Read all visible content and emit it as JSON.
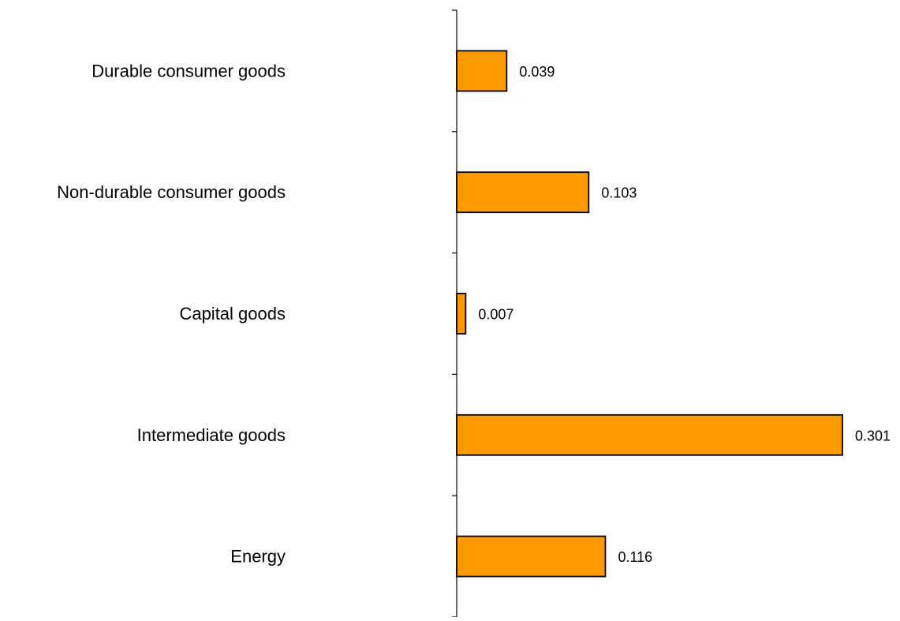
{
  "chart_data": {
    "type": "bar",
    "orientation": "horizontal",
    "categories": [
      "Durable consumer goods",
      "Non-durable consumer goods",
      "Capital goods",
      "Intermediate goods",
      "Energy"
    ],
    "values": [
      0.039,
      0.103,
      0.007,
      0.301,
      0.116
    ],
    "value_labels": [
      "0.039",
      "0.103",
      "0.007",
      "0.301",
      "0.116"
    ],
    "title": "",
    "xlabel": "",
    "ylabel": "",
    "xlim": [
      0,
      0.301
    ],
    "grid": false,
    "legend": "none",
    "colors": {
      "bar_fill": "#FF9900",
      "bar_stroke": "#000000",
      "axis": "#000000"
    }
  }
}
